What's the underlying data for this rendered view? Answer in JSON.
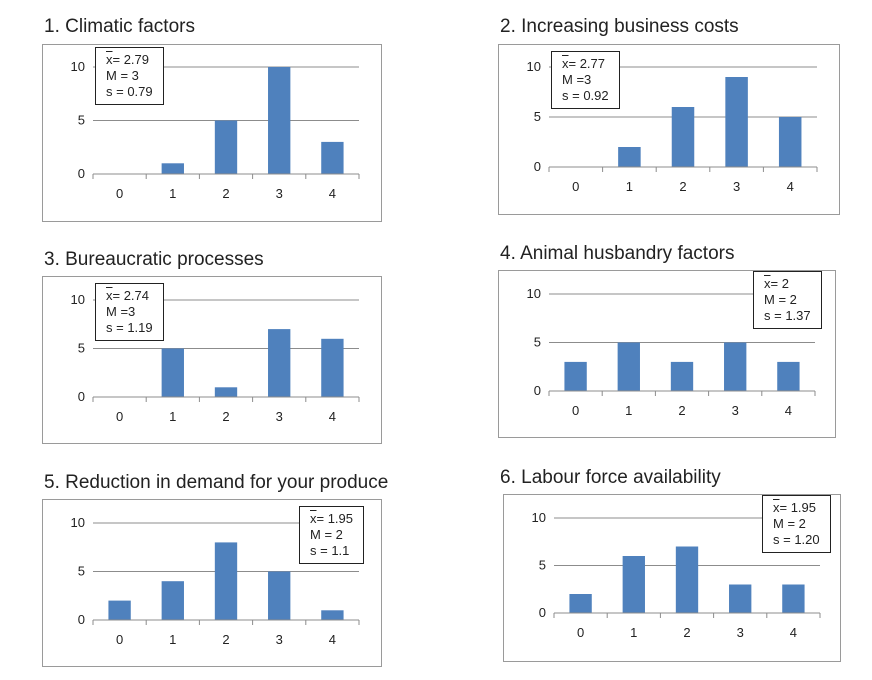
{
  "colors": {
    "bar": "#4f81bd",
    "grid": "#8c8c8c",
    "frame": "#9a9a9a"
  },
  "chart_data": [
    {
      "type": "bar",
      "title": "1. Climatic factors",
      "categories": [
        "0",
        "1",
        "2",
        "3",
        "4"
      ],
      "values": [
        0,
        1,
        5,
        10,
        3
      ],
      "ylim": [
        0,
        10
      ],
      "yticks": [
        "0",
        "5",
        "10"
      ],
      "stats": {
        "mean_symbol": "x",
        "mean": "= 2.79",
        "median": "M = 3",
        "sd": "s = 0.79"
      },
      "legend_position": "top-left"
    },
    {
      "type": "bar",
      "title": "2.  Increasing business costs",
      "categories": [
        "0",
        "1",
        "2",
        "3",
        "4"
      ],
      "values": [
        0,
        2,
        6,
        9,
        5
      ],
      "ylim": [
        0,
        10
      ],
      "yticks": [
        "0",
        "5",
        "10"
      ],
      "stats": {
        "mean_symbol": "x",
        "mean": "= 2.77",
        "median": "M =3",
        "sd": "s = 0.92"
      },
      "legend_position": "top-left"
    },
    {
      "type": "bar",
      "title": "3. Bureaucratic processes",
      "categories": [
        "0",
        "1",
        "2",
        "3",
        "4"
      ],
      "values": [
        0,
        5,
        1,
        7,
        6
      ],
      "ylim": [
        0,
        10
      ],
      "yticks": [
        "0",
        "5",
        "10"
      ],
      "stats": {
        "mean_symbol": "x",
        "mean": "= 2.74",
        "median": "M =3",
        "sd": "s = 1.19"
      },
      "legend_position": "top-left"
    },
    {
      "type": "bar",
      "title": "4.  Animal husbandry factors",
      "categories": [
        "0",
        "1",
        "2",
        "3",
        "4"
      ],
      "values": [
        3,
        5,
        3,
        5,
        3
      ],
      "ylim": [
        0,
        10
      ],
      "yticks": [
        "0",
        "5",
        "10"
      ],
      "stats": {
        "mean_symbol": "x",
        "mean": "= 2",
        "median": "M = 2",
        "sd": "s = 1.37"
      },
      "legend_position": "top-right"
    },
    {
      "type": "bar",
      "title": "5. Reduction in demand for your produce",
      "categories": [
        "0",
        "1",
        "2",
        "3",
        "4"
      ],
      "values": [
        2,
        4,
        8,
        5,
        1
      ],
      "ylim": [
        0,
        10
      ],
      "yticks": [
        "0",
        "5",
        "10"
      ],
      "stats": {
        "mean_symbol": "x",
        "mean": "= 1.95",
        "median": "M = 2",
        "sd": "s = 1.1"
      },
      "legend_position": "top-right"
    },
    {
      "type": "bar",
      "title": "6.  Labour force availability",
      "categories": [
        "0",
        "1",
        "2",
        "3",
        "4"
      ],
      "values": [
        2,
        6,
        7,
        3,
        3
      ],
      "ylim": [
        0,
        10
      ],
      "yticks": [
        "0",
        "5",
        "10"
      ],
      "stats": {
        "mean_symbol": "x",
        "mean": "= 1.95",
        "median": "M = 2",
        "sd": "s = 1.20"
      },
      "legend_position": "top-right"
    }
  ]
}
